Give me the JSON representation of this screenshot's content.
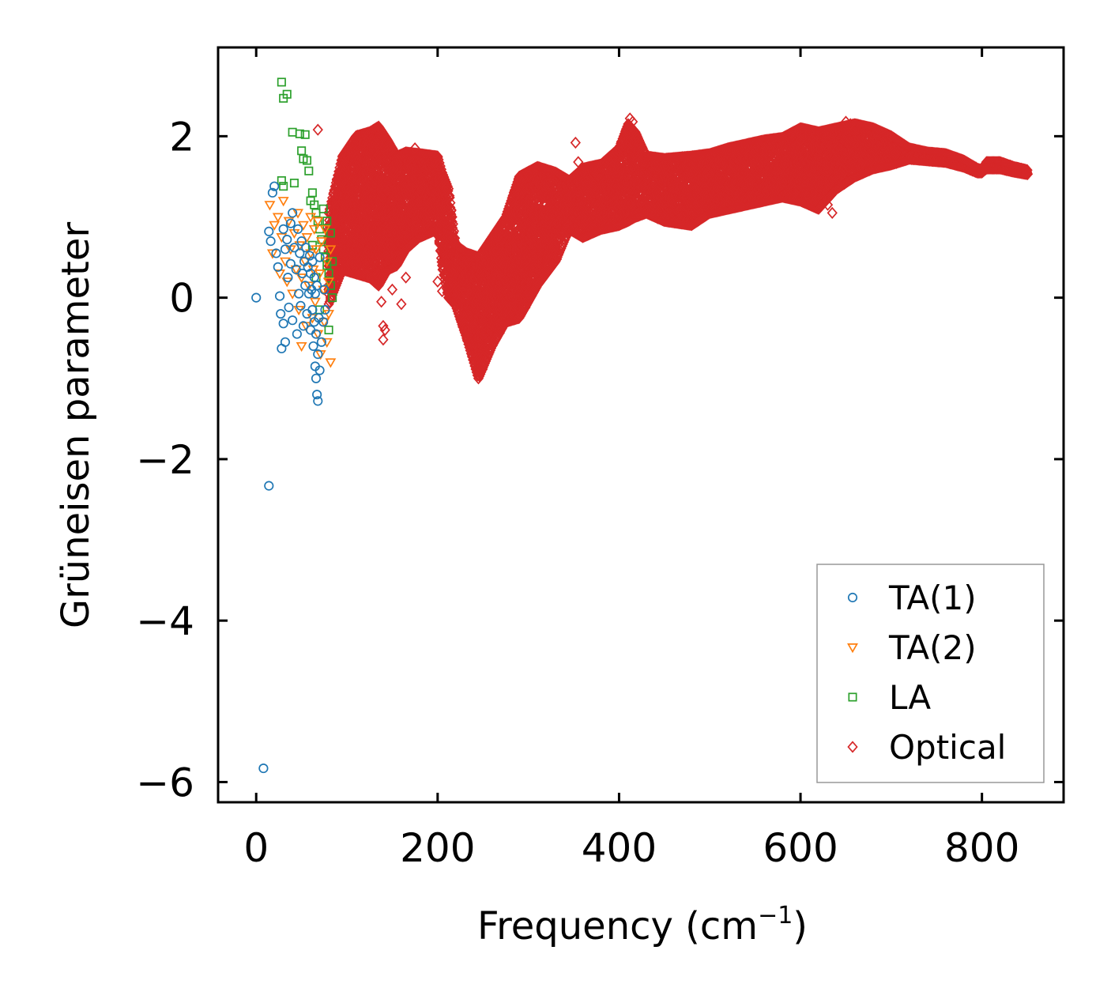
{
  "chart_data": {
    "type": "scatter",
    "title": "",
    "xlabel": "Frequency (cm",
    "xlabel_sup": "−1",
    "xlabel_end": ")",
    "ylabel": "Grüneisen parameter",
    "xlim": [
      -42,
      890
    ],
    "ylim": [
      -6.25,
      3.1
    ],
    "xticks": [
      0,
      200,
      400,
      600,
      800
    ],
    "xtick_labels": [
      "0",
      "200",
      "400",
      "600",
      "800"
    ],
    "yticks": [
      2,
      0,
      -2,
      -4,
      -6
    ],
    "ytick_labels": [
      "2",
      "0",
      "−2",
      "−4",
      "−6"
    ],
    "grid": false,
    "legend_position": "lower-right",
    "series": [
      {
        "name": "TA(1)",
        "marker": "circle",
        "color": "#1f77b4",
        "points": [
          [
            0,
            0
          ],
          [
            8,
            -5.83
          ],
          [
            14,
            -2.33
          ],
          [
            14,
            0.82
          ],
          [
            16,
            0.7
          ],
          [
            18,
            1.3
          ],
          [
            20,
            1.38
          ],
          [
            22,
            0.55
          ],
          [
            24,
            0.38
          ],
          [
            26,
            0.02
          ],
          [
            27,
            -0.2
          ],
          [
            28,
            -0.63
          ],
          [
            30,
            0.85
          ],
          [
            30,
            -0.32
          ],
          [
            32,
            0.6
          ],
          [
            32,
            -0.55
          ],
          [
            34,
            0.72
          ],
          [
            35,
            0.25
          ],
          [
            36,
            -0.12
          ],
          [
            38,
            0.92
          ],
          [
            38,
            0.42
          ],
          [
            40,
            1.05
          ],
          [
            40,
            -0.28
          ],
          [
            42,
            0.62
          ],
          [
            44,
            0.35
          ],
          [
            45,
            -0.45
          ],
          [
            46,
            0.85
          ],
          [
            47,
            0.05
          ],
          [
            48,
            0.55
          ],
          [
            49,
            -0.1
          ],
          [
            50,
            0.7
          ],
          [
            51,
            0.3
          ],
          [
            52,
            -0.35
          ],
          [
            53,
            0.45
          ],
          [
            54,
            0.15
          ],
          [
            55,
            0.62
          ],
          [
            56,
            -0.2
          ],
          [
            57,
            0.38
          ],
          [
            58,
            0.05
          ],
          [
            59,
            0.52
          ],
          [
            60,
            -0.4
          ],
          [
            60,
            0.3
          ],
          [
            61,
            0.1
          ],
          [
            62,
            -0.15
          ],
          [
            62,
            0.45
          ],
          [
            63,
            -0.6
          ],
          [
            64,
            0.25
          ],
          [
            64,
            -0.3
          ],
          [
            65,
            -0.85
          ],
          [
            65,
            0.05
          ],
          [
            66,
            -1.0
          ],
          [
            66,
            -0.45
          ],
          [
            67,
            -1.2
          ],
          [
            67,
            0.15
          ],
          [
            68,
            -0.7
          ],
          [
            69,
            -0.25
          ],
          [
            70,
            -0.9
          ],
          [
            70,
            0.5
          ],
          [
            72,
            -0.55
          ],
          [
            74,
            -0.3
          ],
          [
            75,
            0.1
          ],
          [
            76,
            -0.15
          ],
          [
            68,
            -1.28
          ]
        ]
      },
      {
        "name": "TA(2)",
        "marker": "triangle-down",
        "color": "#ff7f0e",
        "points": [
          [
            15,
            1.15
          ],
          [
            18,
            0.55
          ],
          [
            20,
            0.9
          ],
          [
            24,
            1.0
          ],
          [
            26,
            0.3
          ],
          [
            28,
            0.75
          ],
          [
            30,
            1.2
          ],
          [
            32,
            0.45
          ],
          [
            34,
            0.2
          ],
          [
            36,
            0.95
          ],
          [
            38,
            0.6
          ],
          [
            40,
            0.05
          ],
          [
            42,
            0.8
          ],
          [
            44,
            0.35
          ],
          [
            46,
            1.05
          ],
          [
            47,
            -0.15
          ],
          [
            48,
            0.65
          ],
          [
            50,
            -0.6
          ],
          [
            50,
            0.25
          ],
          [
            52,
            0.9
          ],
          [
            54,
            0.45
          ],
          [
            55,
            -0.35
          ],
          [
            56,
            0.75
          ],
          [
            58,
            0.15
          ],
          [
            60,
            1.0
          ],
          [
            60,
            0.55
          ],
          [
            62,
            -0.25
          ],
          [
            63,
            0.35
          ],
          [
            64,
            0.85
          ],
          [
            65,
            -0.05
          ],
          [
            66,
            0.6
          ],
          [
            68,
            -0.45
          ],
          [
            68,
            0.95
          ],
          [
            70,
            0.3
          ],
          [
            71,
            -0.7
          ],
          [
            72,
            0.7
          ],
          [
            74,
            0.1
          ],
          [
            75,
            -0.3
          ],
          [
            76,
            0.85
          ],
          [
            78,
            -0.55
          ],
          [
            78,
            0.45
          ],
          [
            80,
            -0.2
          ],
          [
            80,
            0.2
          ],
          [
            82,
            0.6
          ],
          [
            82,
            -0.8
          ]
        ]
      },
      {
        "name": "LA",
        "marker": "square",
        "color": "#2ca02c",
        "points": [
          [
            28,
            2.67
          ],
          [
            30,
            2.47
          ],
          [
            34,
            2.52
          ],
          [
            40,
            2.05
          ],
          [
            48,
            2.03
          ],
          [
            54,
            2.02
          ],
          [
            50,
            1.82
          ],
          [
            52,
            1.72
          ],
          [
            56,
            1.7
          ],
          [
            58,
            1.57
          ],
          [
            60,
            1.2
          ],
          [
            62,
            1.3
          ],
          [
            64,
            1.15
          ],
          [
            66,
            1.05
          ],
          [
            68,
            0.95
          ],
          [
            70,
            0.85
          ],
          [
            72,
            0.72
          ],
          [
            74,
            0.6
          ],
          [
            76,
            0.5
          ],
          [
            78,
            0.4
          ],
          [
            80,
            0.3
          ],
          [
            82,
            0.15
          ],
          [
            84,
            0.45
          ],
          [
            84,
            0.0
          ],
          [
            80,
            -0.4
          ],
          [
            42,
            1.42
          ],
          [
            28,
            1.45
          ],
          [
            30,
            1.38
          ],
          [
            62,
            0.65
          ],
          [
            66,
            0.25
          ],
          [
            70,
            -0.15
          ],
          [
            74,
            1.1
          ],
          [
            78,
            0.95
          ],
          [
            82,
            0.8
          ]
        ]
      },
      {
        "name": "Optical",
        "marker": "diamond",
        "color": "#d62728",
        "upper": [
          [
            80,
            1.05
          ],
          [
            95,
            1.75
          ],
          [
            110,
            2.0
          ],
          [
            125,
            2.05
          ],
          [
            135,
            2.12
          ],
          [
            145,
            1.95
          ],
          [
            155,
            1.75
          ],
          [
            165,
            1.8
          ],
          [
            180,
            1.78
          ],
          [
            200,
            1.75
          ],
          [
            205,
            1.55
          ],
          [
            212,
            1.35
          ],
          [
            220,
            0.65
          ],
          [
            232,
            0.55
          ],
          [
            245,
            0.5
          ],
          [
            260,
            0.75
          ],
          [
            275,
            1.0
          ],
          [
            290,
            1.5
          ],
          [
            310,
            1.62
          ],
          [
            330,
            1.55
          ],
          [
            345,
            1.45
          ],
          [
            360,
            1.6
          ],
          [
            380,
            1.65
          ],
          [
            400,
            1.85
          ],
          [
            410,
            2.15
          ],
          [
            418,
            2.05
          ],
          [
            430,
            1.75
          ],
          [
            450,
            1.72
          ],
          [
            480,
            1.75
          ],
          [
            500,
            1.78
          ],
          [
            520,
            1.85
          ],
          [
            540,
            1.9
          ],
          [
            560,
            1.95
          ],
          [
            580,
            1.98
          ],
          [
            600,
            2.1
          ],
          [
            620,
            2.05
          ],
          [
            640,
            2.1
          ],
          [
            660,
            2.15
          ],
          [
            680,
            2.1
          ],
          [
            700,
            2.0
          ],
          [
            720,
            1.85
          ],
          [
            740,
            1.8
          ],
          [
            760,
            1.78
          ],
          [
            780,
            1.7
          ],
          [
            795,
            1.6
          ],
          [
            800,
            1.58
          ],
          [
            805,
            1.68
          ],
          [
            820,
            1.68
          ],
          [
            835,
            1.62
          ],
          [
            850,
            1.58
          ]
        ],
        "lower": [
          [
            80,
            -0.08
          ],
          [
            95,
            0.35
          ],
          [
            110,
            0.3
          ],
          [
            125,
            0.25
          ],
          [
            135,
            0.15
          ],
          [
            145,
            0.35
          ],
          [
            155,
            0.4
          ],
          [
            165,
            0.6
          ],
          [
            180,
            0.75
          ],
          [
            200,
            0.85
          ],
          [
            205,
            0.4
          ],
          [
            212,
            0.0
          ],
          [
            220,
            -0.1
          ],
          [
            232,
            -0.5
          ],
          [
            245,
            -1.0
          ],
          [
            260,
            -0.6
          ],
          [
            275,
            -0.3
          ],
          [
            290,
            -0.25
          ],
          [
            310,
            0.15
          ],
          [
            330,
            0.45
          ],
          [
            345,
            0.85
          ],
          [
            360,
            0.75
          ],
          [
            380,
            0.85
          ],
          [
            400,
            0.9
          ],
          [
            410,
            0.95
          ],
          [
            418,
            1.0
          ],
          [
            430,
            1.05
          ],
          [
            450,
            0.95
          ],
          [
            480,
            0.9
          ],
          [
            500,
            1.05
          ],
          [
            520,
            1.1
          ],
          [
            540,
            1.15
          ],
          [
            560,
            1.2
          ],
          [
            580,
            1.25
          ],
          [
            600,
            1.2
          ],
          [
            620,
            1.1
          ],
          [
            640,
            1.35
          ],
          [
            660,
            1.5
          ],
          [
            680,
            1.6
          ],
          [
            700,
            1.65
          ],
          [
            720,
            1.72
          ],
          [
            740,
            1.7
          ],
          [
            760,
            1.68
          ],
          [
            780,
            1.62
          ],
          [
            795,
            1.55
          ],
          [
            800,
            1.55
          ],
          [
            805,
            1.6
          ],
          [
            820,
            1.6
          ],
          [
            835,
            1.56
          ],
          [
            850,
            1.53
          ]
        ],
        "outliers": [
          [
            68,
            2.08
          ],
          [
            92,
            0.55
          ],
          [
            120,
            0.9
          ],
          [
            138,
            -0.05
          ],
          [
            140,
            -0.35
          ],
          [
            140,
            -0.52
          ],
          [
            142,
            -0.4
          ],
          [
            150,
            0.1
          ],
          [
            160,
            -0.08
          ],
          [
            165,
            0.25
          ],
          [
            175,
            1.85
          ],
          [
            200,
            0.2
          ],
          [
            205,
            0.08
          ],
          [
            352,
            1.92
          ],
          [
            355,
            1.68
          ],
          [
            412,
            2.22
          ],
          [
            415,
            2.18
          ],
          [
            600,
            1.95
          ],
          [
            610,
            2.05
          ],
          [
            630,
            1.15
          ],
          [
            635,
            1.05
          ],
          [
            650,
            2.18
          ],
          [
            655,
            2.15
          ],
          [
            700,
            2.0
          ]
        ]
      }
    ]
  }
}
